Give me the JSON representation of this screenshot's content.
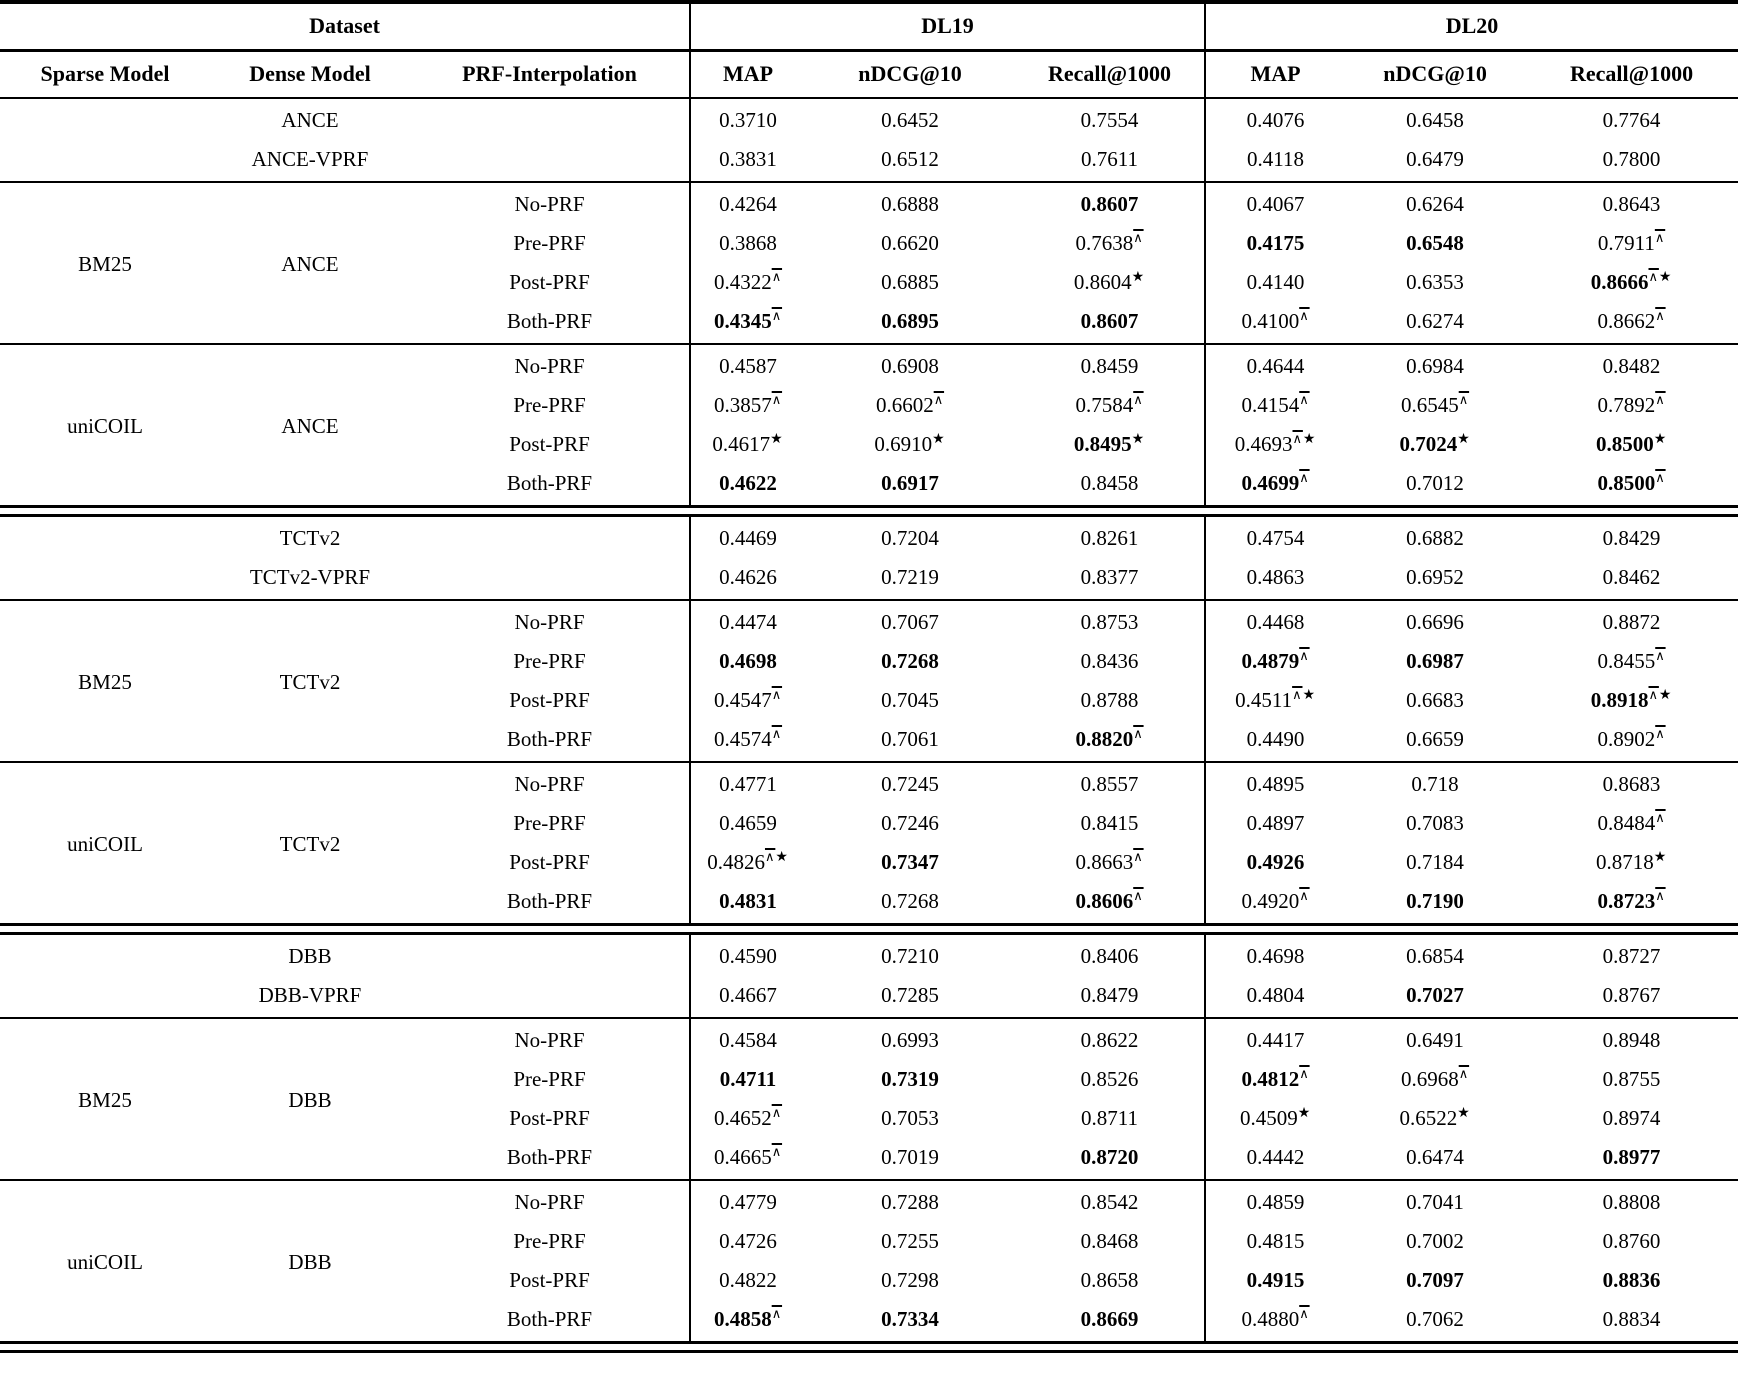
{
  "table": {
    "header": {
      "dataset_label": "Dataset",
      "dl19_label": "DL19",
      "dl20_label": "DL20",
      "cols": [
        "Sparse Model",
        "Dense Model",
        "PRF-Interpolation",
        "MAP",
        "nDCG@10",
        "Recall@1000",
        "MAP",
        "nDCG@10",
        "Recall@1000"
      ]
    },
    "superscripts": {
      "wedge": "∧",
      "star": "★"
    },
    "sections": [
      {
        "type": "baseline",
        "rows": [
          {
            "dense": "ANCE",
            "values": [
              "0.3710",
              "0.6452",
              "0.7554",
              "0.4076",
              "0.6458",
              "0.7764"
            ]
          },
          {
            "dense": "ANCE-VPRF",
            "values": [
              "0.3831",
              "0.6512",
              "0.7611",
              "0.4118",
              "0.6479",
              "0.7800"
            ]
          }
        ]
      },
      {
        "type": "group",
        "sparse": "BM25",
        "dense": "ANCE",
        "rows": [
          {
            "prf": "No-PRF",
            "values": [
              "0.4264",
              "0.6888",
              "**0.8607**",
              "0.4067",
              "0.6264",
              "0.8643"
            ]
          },
          {
            "prf": "Pre-PRF",
            "values": [
              "0.3868",
              "0.6620",
              "0.7638^",
              "**0.4175**",
              "**0.6548**",
              "0.7911^"
            ]
          },
          {
            "prf": "Post-PRF",
            "values": [
              "0.4322^",
              "0.6885",
              "0.8604★",
              "0.4140",
              "0.6353",
              "**0.8666**^★"
            ]
          },
          {
            "prf": "Both-PRF",
            "values": [
              "**0.4345**^",
              "**0.6895**",
              "**0.8607**",
              "0.4100^",
              "0.6274",
              "0.8662^"
            ]
          }
        ]
      },
      {
        "type": "group",
        "sparse": "uniCOIL",
        "dense": "ANCE",
        "rows": [
          {
            "prf": "No-PRF",
            "values": [
              "0.4587",
              "0.6908",
              "0.8459",
              "0.4644",
              "0.6984",
              "0.8482"
            ]
          },
          {
            "prf": "Pre-PRF",
            "values": [
              "0.3857^",
              "0.6602^",
              "0.7584^",
              "0.4154^",
              "0.6545^",
              "0.7892^"
            ]
          },
          {
            "prf": "Post-PRF",
            "values": [
              "0.4617★",
              "0.6910★",
              "**0.8495**★",
              "0.4693^★",
              "**0.7024**★",
              "**0.8500**★"
            ]
          },
          {
            "prf": "Both-PRF",
            "values": [
              "**0.4622**",
              "**0.6917**",
              "0.8458",
              "**0.4699**^",
              "0.7012",
              "**0.8500**^"
            ]
          }
        ]
      },
      {
        "type": "divider"
      },
      {
        "type": "baseline",
        "rows": [
          {
            "dense": "TCTv2",
            "values": [
              "0.4469",
              "0.7204",
              "0.8261",
              "0.4754",
              "0.6882",
              "0.8429"
            ]
          },
          {
            "dense": "TCTv2-VPRF",
            "values": [
              "0.4626",
              "0.7219",
              "0.8377",
              "0.4863",
              "0.6952",
              "0.8462"
            ]
          }
        ]
      },
      {
        "type": "group",
        "sparse": "BM25",
        "dense": "TCTv2",
        "rows": [
          {
            "prf": "No-PRF",
            "values": [
              "0.4474",
              "0.7067",
              "0.8753",
              "0.4468",
              "0.6696",
              "0.8872"
            ]
          },
          {
            "prf": "Pre-PRF",
            "values": [
              "**0.4698**",
              "**0.7268**",
              "0.8436",
              "**0.4879**^",
              "**0.6987**",
              "0.8455^"
            ]
          },
          {
            "prf": "Post-PRF",
            "values": [
              "0.4547^",
              "0.7045",
              "0.8788",
              "0.4511^★",
              "0.6683",
              "**0.8918**^★"
            ]
          },
          {
            "prf": "Both-PRF",
            "values": [
              "0.4574^",
              "0.7061",
              "**0.8820**^",
              "0.4490",
              "0.6659",
              "0.8902^"
            ]
          }
        ]
      },
      {
        "type": "group",
        "sparse": "uniCOIL",
        "dense": "TCTv2",
        "rows": [
          {
            "prf": "No-PRF",
            "values": [
              "0.4771",
              "0.7245",
              "0.8557",
              "0.4895",
              "0.718",
              "0.8683"
            ]
          },
          {
            "prf": "Pre-PRF",
            "values": [
              "0.4659",
              "0.7246",
              "0.8415",
              "0.4897",
              "0.7083",
              "0.8484^"
            ]
          },
          {
            "prf": "Post-PRF",
            "values": [
              "0.4826^★",
              "**0.7347**",
              "0.8663^",
              "**0.4926**",
              "0.7184",
              "0.8718★"
            ]
          },
          {
            "prf": "Both-PRF",
            "values": [
              "**0.4831**",
              "0.7268",
              "**0.8606**^",
              "0.4920^",
              "**0.7190**",
              "**0.8723**^"
            ]
          }
        ]
      },
      {
        "type": "divider"
      },
      {
        "type": "baseline",
        "rows": [
          {
            "dense": "DBB",
            "values": [
              "0.4590",
              "0.7210",
              "0.8406",
              "0.4698",
              "0.6854",
              "0.8727"
            ]
          },
          {
            "dense": "DBB-VPRF",
            "values": [
              "0.4667",
              "0.7285",
              "0.8479",
              "0.4804",
              "**0.7027**",
              "0.8767"
            ]
          }
        ]
      },
      {
        "type": "group",
        "sparse": "BM25",
        "dense": "DBB",
        "rows": [
          {
            "prf": "No-PRF",
            "values": [
              "0.4584",
              "0.6993",
              "0.8622",
              "0.4417",
              "0.6491",
              "0.8948"
            ]
          },
          {
            "prf": "Pre-PRF",
            "values": [
              "**0.4711**",
              "**0.7319**",
              "0.8526",
              "**0.4812**^",
              "0.6968^",
              "0.8755"
            ]
          },
          {
            "prf": "Post-PRF",
            "values": [
              "0.4652^",
              "0.7053",
              "0.8711",
              "0.4509★",
              "0.6522★",
              "0.8974"
            ]
          },
          {
            "prf": "Both-PRF",
            "values": [
              "0.4665^",
              "0.7019",
              "**0.8720**",
              "0.4442",
              "0.6474",
              "**0.8977**"
            ]
          }
        ]
      },
      {
        "type": "group",
        "sparse": "uniCOIL",
        "dense": "DBB",
        "rows": [
          {
            "prf": "No-PRF",
            "values": [
              "0.4779",
              "0.7288",
              "0.8542",
              "0.4859",
              "0.7041",
              "0.8808"
            ]
          },
          {
            "prf": "Pre-PRF",
            "values": [
              "0.4726",
              "0.7255",
              "0.8468",
              "0.4815",
              "0.7002",
              "0.8760"
            ]
          },
          {
            "prf": "Post-PRF",
            "values": [
              "0.4822",
              "0.7298",
              "0.8658",
              "**0.4915**",
              "**0.7097**",
              "**0.8836**"
            ]
          },
          {
            "prf": "Both-PRF",
            "values": [
              "**0.4858**^",
              "**0.7334**",
              "**0.8669**",
              "0.4880^",
              "0.7062",
              "0.8834"
            ]
          }
        ]
      },
      {
        "type": "divider"
      }
    ]
  }
}
